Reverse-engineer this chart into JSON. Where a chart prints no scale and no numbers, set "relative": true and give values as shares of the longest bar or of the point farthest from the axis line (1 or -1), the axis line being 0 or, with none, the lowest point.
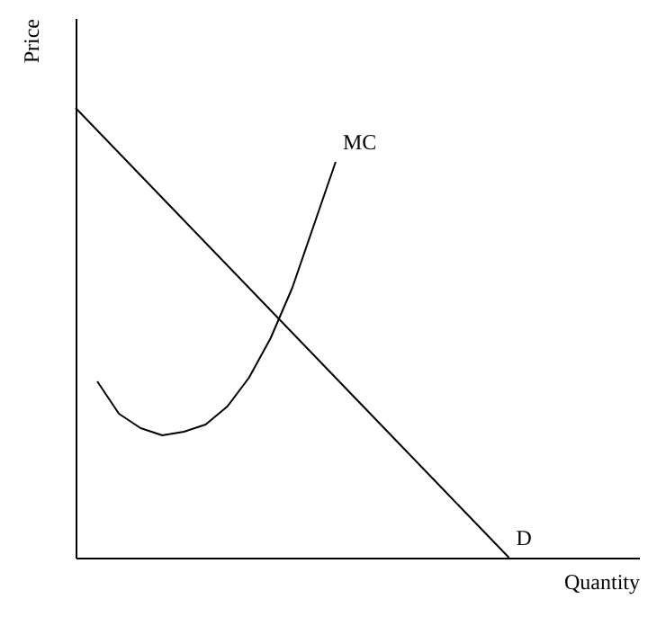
{
  "chart_data": {
    "type": "line",
    "relative": true,
    "xlabel": "Quantity",
    "ylabel": "Price",
    "grid": false,
    "marker": "none",
    "line_style": "solid",
    "categories": [
      null,
      null,
      null,
      null,
      null,
      null,
      null,
      null,
      null,
      null,
      null,
      null,
      null,
      null,
      null,
      null,
      null,
      null,
      null,
      null,
      null,
      null,
      null,
      null,
      null,
      null,
      null
    ],
    "series": [
      {
        "name": "MC",
        "color": "#000000",
        "values": [
          null,
          0.392,
          0.32,
          0.288,
          0.272,
          0.28,
          0.296,
          0.336,
          0.4,
          0.488,
          0.6,
          0.74,
          0.88,
          null,
          null,
          null,
          null,
          null,
          null,
          null,
          null,
          null,
          null,
          null,
          null,
          null,
          null
        ]
      },
      {
        "name": "D",
        "color": "#000000",
        "values": [
          1,
          0.95,
          0.9,
          0.85,
          0.8,
          0.75,
          0.7,
          0.65,
          0.6,
          0.55,
          0.5,
          0.45,
          0.4,
          0.35,
          0.3,
          0.25,
          0.2,
          0.15,
          0.1,
          0.05,
          0,
          null,
          null,
          null,
          null,
          null,
          null
        ]
      }
    ]
  }
}
